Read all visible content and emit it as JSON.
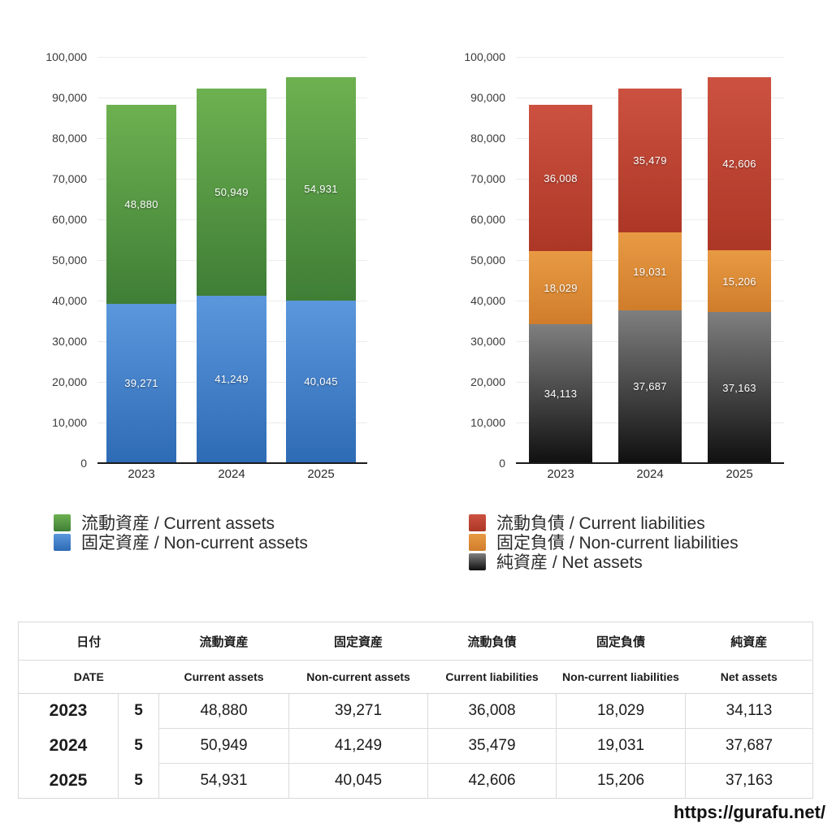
{
  "chart_data": [
    {
      "type": "bar",
      "stacked": true,
      "categories": [
        "2023",
        "2024",
        "2025"
      ],
      "series": [
        {
          "name": "流動資産 / Current assets",
          "values": [
            48880,
            50949,
            54931
          ],
          "color": {
            "top": "#6db151",
            "bottom": "#3f7e36"
          }
        },
        {
          "name": "固定資産 / Non-current assets",
          "values": [
            39271,
            41249,
            40045
          ],
          "color": {
            "top": "#5b97dc",
            "bottom": "#2e6bb5"
          }
        }
      ],
      "stack_order": "first-series-on-top",
      "title": "",
      "xlabel": "",
      "ylabel": "",
      "ylim": [
        0,
        100000
      ],
      "ytick_step": 10000,
      "grid": true,
      "legend_position": "bottom-left",
      "value_labels": "white-inside-segments"
    },
    {
      "type": "bar",
      "stacked": true,
      "categories": [
        "2023",
        "2024",
        "2025"
      ],
      "series": [
        {
          "name": "流動負債 / Current liabilities",
          "values": [
            36008,
            35479,
            42606
          ],
          "color": {
            "top": "#cc5140",
            "bottom": "#ad3726"
          }
        },
        {
          "name": "固定負債 / Non-current liabilities",
          "values": [
            18029,
            19031,
            15206
          ],
          "color": {
            "top": "#e89a43",
            "bottom": "#d07d2b"
          }
        },
        {
          "name": "純資産 / Net assets",
          "values": [
            34113,
            37687,
            37163
          ],
          "color": {
            "top": "#7f7f7f",
            "bottom": "#101010"
          }
        }
      ],
      "stack_order": "first-series-on-top",
      "title": "",
      "xlabel": "",
      "ylabel": "",
      "ylim": [
        0,
        100000
      ],
      "ytick_step": 10000,
      "grid": true,
      "legend_position": "bottom-left",
      "value_labels": "white-inside-segments"
    }
  ],
  "table": {
    "header_jp": [
      "日付",
      "流動資産",
      "固定資産",
      "流動負債",
      "固定負債",
      "純資産"
    ],
    "header_en": [
      "DATE",
      "Current assets",
      "Non-current assets",
      "Current liabilities",
      "Non-current liabilities",
      "Net assets"
    ],
    "rows": [
      {
        "year": "2023",
        "month": "5",
        "values": [
          48880,
          39271,
          36008,
          18029,
          34113
        ]
      },
      {
        "year": "2024",
        "month": "5",
        "values": [
          50949,
          41249,
          35479,
          19031,
          37687
        ]
      },
      {
        "year": "2025",
        "month": "5",
        "values": [
          54931,
          40045,
          42606,
          15206,
          37163
        ]
      }
    ]
  },
  "footer": {
    "url": "https://gurafu.net/"
  }
}
